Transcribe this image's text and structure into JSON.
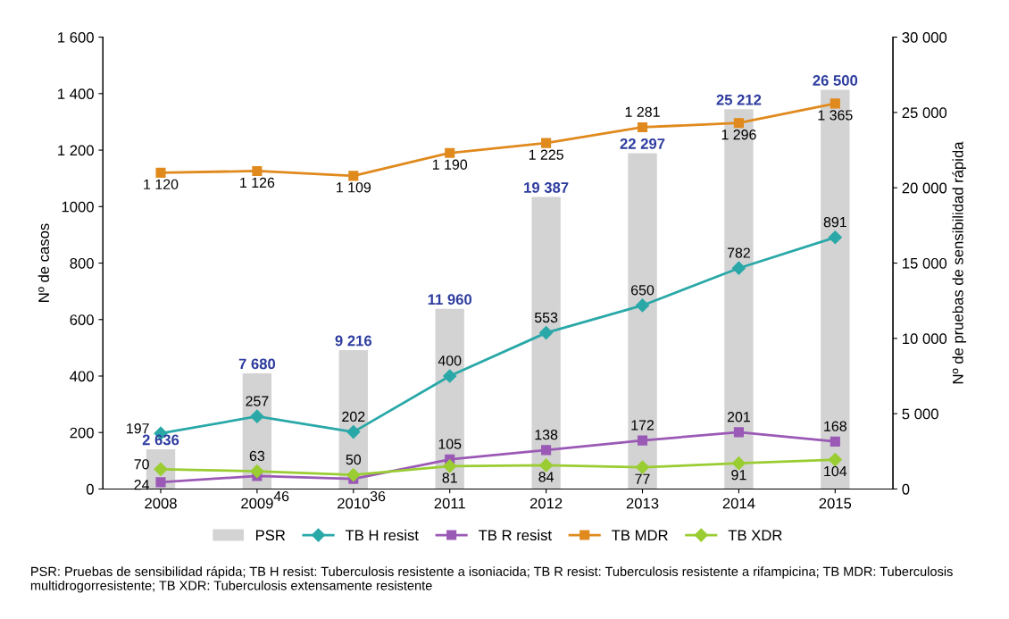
{
  "chart_data": {
    "type": "line",
    "categories": [
      "2008",
      "2009",
      "2010",
      "2011",
      "2012",
      "2013",
      "2014",
      "2015"
    ],
    "ylabel": "Nº de casos",
    "y2label": "Nº de pruebas de sensibilidad rápida",
    "ylim": [
      0,
      1600
    ],
    "yticks": [
      0,
      200,
      400,
      600,
      800,
      1000,
      {
        "value": 1200,
        "label": "1 200"
      },
      {
        "value": 1400,
        "label": "1 400"
      },
      {
        "value": 1600,
        "label": "1 600"
      }
    ],
    "y2lim": [
      0,
      30000
    ],
    "y2ticks": [
      0,
      {
        "value": 5000,
        "label": "5 000"
      },
      {
        "value": 10000,
        "label": "10 000"
      },
      {
        "value": 15000,
        "label": "15 000"
      },
      {
        "value": 20000,
        "label": "20 000"
      },
      {
        "value": 25000,
        "label": "25 000"
      },
      {
        "value": 30000,
        "label": "30 000"
      }
    ],
    "grid": false,
    "legend": "bottom",
    "series": [
      {
        "name": "PSR",
        "type": "bar",
        "axis": "y2",
        "color": "#d3d3d3",
        "values": [
          2636,
          7680,
          9216,
          11960,
          19387,
          22297,
          25212,
          26500
        ],
        "value_labels": [
          "2 636",
          "7 680",
          "9 216",
          "11 960",
          "19 387",
          "22 297",
          "25 212",
          "26 500"
        ]
      },
      {
        "name": "TB H resist",
        "marker": "diamond",
        "color": "#2aa8a8",
        "values": [
          197,
          257,
          202,
          400,
          553,
          650,
          782,
          891
        ],
        "value_labels": [
          "197",
          "257",
          "202",
          "400",
          "553",
          "650",
          "782",
          "891"
        ]
      },
      {
        "name": "TB R resist",
        "marker": "square",
        "color": "#9b59b6",
        "values": [
          24,
          46,
          36,
          105,
          138,
          172,
          201,
          168
        ],
        "value_labels": [
          "24",
          "46",
          "36",
          "105",
          "138",
          "172",
          "201",
          "168"
        ]
      },
      {
        "name": "TB MDR",
        "marker": "square",
        "color": "#e08a1e",
        "values": [
          1120,
          1126,
          1109,
          1190,
          1225,
          1281,
          1296,
          1365
        ],
        "value_labels": [
          "1 120",
          "1 126",
          "1 109",
          "1 190",
          "1 225",
          "1 281",
          "1 296",
          "1 365"
        ]
      },
      {
        "name": "TB XDR",
        "marker": "diamond",
        "color": "#9acd32",
        "values": [
          70,
          63,
          50,
          81,
          84,
          77,
          91,
          104
        ],
        "value_labels": [
          "70",
          "63",
          "50",
          "81",
          "84",
          "77",
          "91",
          "104"
        ]
      }
    ],
    "annotations": [
      "PSR: Pruebas de sensibilidad rápida; TB H resist: Tuberculosis resistente a isoniacida; TB R resist: Tuberculosis resistente a rifampicina; TB MDR: Tuberculosis multidrogorresistente; TB XDR: Tuberculosis extensamente resistente"
    ]
  }
}
